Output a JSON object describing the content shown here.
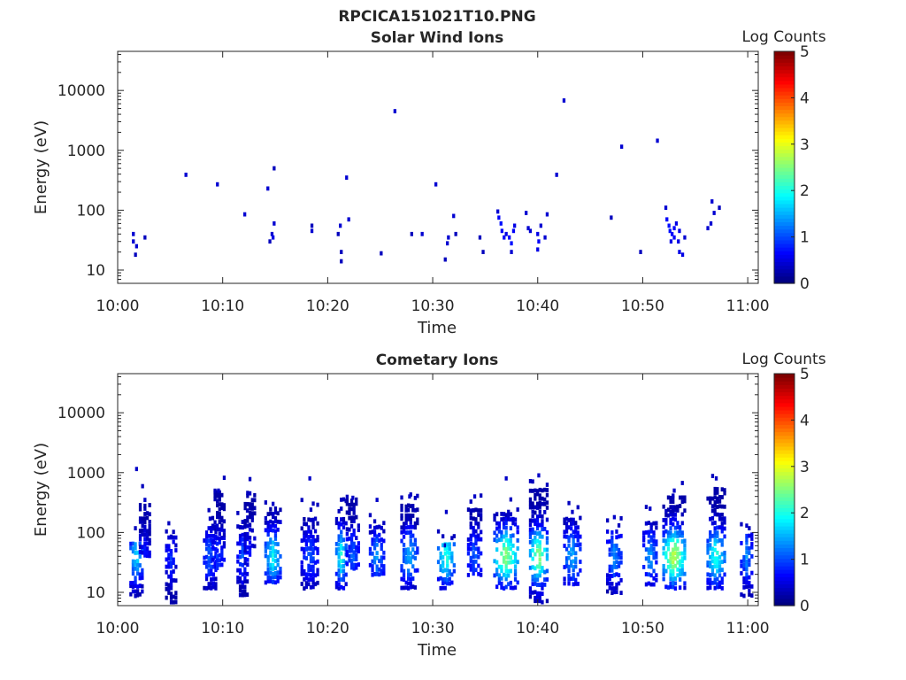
{
  "figure_title": "RPCICA151021T10.PNG",
  "colors": {
    "colormap": "jet",
    "axis": "#262626",
    "background": "#ffffff"
  },
  "chart_data": [
    {
      "type": "heatmap",
      "title": "Solar Wind Ions",
      "xlabel": "Time",
      "ylabel": "Energy (eV)",
      "colorbar_label": "Log Counts",
      "x_ticks": [
        "10:00",
        "10:10",
        "10:20",
        "10:30",
        "10:40",
        "10:50",
        "11:00"
      ],
      "x_tick_minutes": [
        0,
        10,
        20,
        30,
        40,
        50,
        60
      ],
      "xlim_minutes": [
        0,
        61
      ],
      "y_scale": "log",
      "y_ticks": [
        "10",
        "100",
        "1000",
        "10000"
      ],
      "y_tick_values": [
        10,
        100,
        1000,
        10000
      ],
      "ylim": [
        6,
        45000
      ],
      "colorbar_ticks": [
        "0",
        "1",
        "2",
        "3",
        "4",
        "5"
      ],
      "clim": [
        0,
        5
      ],
      "grid": false,
      "points": [
        [
          1.5,
          30,
          0.4
        ],
        [
          1.5,
          40,
          0.4
        ],
        [
          1.8,
          25,
          0.4
        ],
        [
          1.7,
          18,
          0.3
        ],
        [
          2.6,
          35,
          0.3
        ],
        [
          6.5,
          390,
          0.4
        ],
        [
          9.5,
          270,
          0.4
        ],
        [
          12.1,
          85,
          0.4
        ],
        [
          14.3,
          230,
          0.4
        ],
        [
          14.9,
          500,
          0.3
        ],
        [
          14.7,
          40,
          0.4
        ],
        [
          14.8,
          35,
          0.5
        ],
        [
          14.9,
          60,
          0.4
        ],
        [
          14.5,
          30,
          0.3
        ],
        [
          18.5,
          45,
          0.4
        ],
        [
          18.5,
          55,
          0.3
        ],
        [
          21,
          40,
          0.3
        ],
        [
          21.2,
          55,
          0.4
        ],
        [
          21.3,
          20,
          0.3
        ],
        [
          21.3,
          14,
          0.3
        ],
        [
          21.8,
          350,
          0.4
        ],
        [
          22,
          70,
          0.4
        ],
        [
          25.1,
          19,
          0.3
        ],
        [
          26.4,
          4500,
          0.4
        ],
        [
          28,
          40,
          0.3
        ],
        [
          29,
          40,
          0.4
        ],
        [
          30.3,
          270,
          0.4
        ],
        [
          31.2,
          15,
          0.3
        ],
        [
          31.4,
          28,
          0.4
        ],
        [
          31.5,
          35,
          0.4
        ],
        [
          32,
          80,
          0.4
        ],
        [
          32.2,
          40,
          0.3
        ],
        [
          34.5,
          35,
          0.3
        ],
        [
          34.8,
          20,
          0.3
        ],
        [
          36.3,
          75,
          0.6
        ],
        [
          36.5,
          60,
          0.7
        ],
        [
          36.6,
          45,
          0.6
        ],
        [
          36.8,
          35,
          0.6
        ],
        [
          37,
          40,
          0.5
        ],
        [
          37.3,
          35,
          0.6
        ],
        [
          37.5,
          28,
          0.7
        ],
        [
          37.7,
          45,
          0.6
        ],
        [
          37.8,
          55,
          0.5
        ],
        [
          37.5,
          20,
          0.4
        ],
        [
          36.2,
          95,
          0.4
        ],
        [
          38.9,
          90,
          0.4
        ],
        [
          39.1,
          50,
          0.4
        ],
        [
          39.3,
          45,
          0.4
        ],
        [
          40,
          40,
          0.5
        ],
        [
          40.1,
          30,
          0.6
        ],
        [
          40,
          22,
          0.5
        ],
        [
          40.3,
          55,
          0.4
        ],
        [
          40.7,
          35,
          0.4
        ],
        [
          40.9,
          85,
          0.4
        ],
        [
          41.8,
          390,
          0.4
        ],
        [
          42.5,
          6800,
          0.4
        ],
        [
          47,
          75,
          0.3
        ],
        [
          48,
          1150,
          0.4
        ],
        [
          49.8,
          20,
          0.3
        ],
        [
          51.4,
          1450,
          0.4
        ],
        [
          52.2,
          110,
          0.4
        ],
        [
          52.3,
          70,
          0.6
        ],
        [
          52.5,
          55,
          0.7
        ],
        [
          52.6,
          45,
          0.7
        ],
        [
          52.8,
          40,
          0.6
        ],
        [
          53,
          35,
          0.6
        ],
        [
          53.2,
          60,
          0.5
        ],
        [
          53.5,
          45,
          0.5
        ],
        [
          53.4,
          30,
          0.5
        ],
        [
          53.5,
          20,
          0.5
        ],
        [
          53.8,
          18,
          0.5
        ],
        [
          54,
          35,
          0.4
        ],
        [
          52.7,
          30,
          0.5
        ],
        [
          53,
          50,
          0.6
        ],
        [
          56.2,
          50,
          0.4
        ],
        [
          56.5,
          60,
          0.4
        ],
        [
          56.6,
          140,
          0.4
        ],
        [
          56.8,
          90,
          0.4
        ],
        [
          57.3,
          110,
          0.3
        ]
      ]
    },
    {
      "type": "heatmap",
      "title": "Cometary Ions",
      "xlabel": "Time",
      "ylabel": "Energy (eV)",
      "colorbar_label": "Log Counts",
      "x_ticks": [
        "10:00",
        "10:10",
        "10:20",
        "10:30",
        "10:40",
        "10:50",
        "11:00"
      ],
      "x_tick_minutes": [
        0,
        10,
        20,
        30,
        40,
        50,
        60
      ],
      "xlim_minutes": [
        0,
        61
      ],
      "y_scale": "log",
      "y_ticks": [
        "10",
        "100",
        "1000",
        "10000"
      ],
      "y_tick_values": [
        10,
        100,
        1000,
        10000
      ],
      "ylim": [
        6,
        45000
      ],
      "colorbar_ticks": [
        "0",
        "1",
        "2",
        "3",
        "4",
        "5"
      ],
      "clim": [
        0,
        5
      ],
      "grid": false,
      "bursts": [
        {
          "t": 1.8,
          "w": 1.1,
          "emin": 9,
          "emax": 70,
          "peak": 1.6,
          "hi": 1150
        },
        {
          "t": 2.6,
          "w": 0.9,
          "emin": 40,
          "emax": 300,
          "peak": 0.6,
          "hi": 350
        },
        {
          "t": 5.1,
          "w": 0.9,
          "emin": 7,
          "emax": 85,
          "peak": 0.7,
          "hi": 85
        },
        {
          "t": 8.8,
          "w": 1.1,
          "emin": 12,
          "emax": 120,
          "peak": 1.0,
          "hi": 170
        },
        {
          "t": 9.6,
          "w": 1.1,
          "emin": 25,
          "emax": 450,
          "peak": 0.8,
          "hi": 500
        },
        {
          "t": 11.9,
          "w": 0.9,
          "emin": 9,
          "emax": 120,
          "peak": 0.9,
          "hi": 150
        },
        {
          "t": 12.6,
          "w": 0.9,
          "emin": 30,
          "emax": 400,
          "peak": 0.6,
          "hi": 450
        },
        {
          "t": 14.8,
          "w": 1.4,
          "emin": 15,
          "emax": 250,
          "peak": 1.8,
          "hi": 300
        },
        {
          "t": 18.3,
          "w": 1.5,
          "emin": 12,
          "emax": 180,
          "peak": 0.9,
          "hi": 800
        },
        {
          "t": 21.3,
          "w": 0.9,
          "emin": 12,
          "emax": 180,
          "peak": 1.9,
          "hi": 250
        },
        {
          "t": 22.4,
          "w": 1.1,
          "emin": 25,
          "emax": 350,
          "peak": 1.0,
          "hi": 380
        },
        {
          "t": 24.7,
          "w": 1.3,
          "emin": 20,
          "emax": 130,
          "peak": 1.2,
          "hi": 350
        },
        {
          "t": 27.8,
          "w": 1.5,
          "emin": 12,
          "emax": 280,
          "peak": 1.4,
          "hi": 400
        },
        {
          "t": 31.3,
          "w": 1.5,
          "emin": 12,
          "emax": 60,
          "peak": 2.0,
          "hi": 220
        },
        {
          "t": 34.0,
          "w": 1.2,
          "emin": 20,
          "emax": 250,
          "peak": 1.0,
          "hi": 400
        },
        {
          "t": 37.0,
          "w": 2.2,
          "emin": 12,
          "emax": 200,
          "peak": 2.5,
          "hi": 800
        },
        {
          "t": 40.1,
          "w": 1.6,
          "emin": 7,
          "emax": 500,
          "peak": 2.5,
          "hi": 900
        },
        {
          "t": 43.3,
          "w": 1.5,
          "emin": 14,
          "emax": 160,
          "peak": 1.4,
          "hi": 220
        },
        {
          "t": 47.3,
          "w": 1.3,
          "emin": 10,
          "emax": 100,
          "peak": 1.2,
          "hi": 180
        },
        {
          "t": 50.7,
          "w": 1.2,
          "emin": 14,
          "emax": 140,
          "peak": 1.3,
          "hi": 250
        },
        {
          "t": 53.0,
          "w": 2.0,
          "emin": 12,
          "emax": 350,
          "peak": 2.8,
          "hi": 500
        },
        {
          "t": 57.0,
          "w": 1.6,
          "emin": 12,
          "emax": 500,
          "peak": 2.0,
          "hi": 800
        },
        {
          "t": 59.9,
          "w": 1.0,
          "emin": 9,
          "emax": 90,
          "peak": 1.2,
          "hi": 130
        }
      ]
    }
  ]
}
